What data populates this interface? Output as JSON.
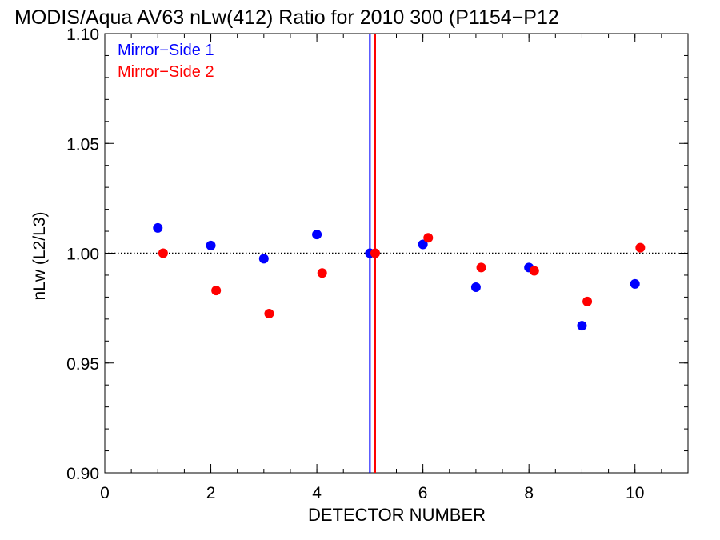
{
  "chart_data": {
    "type": "scatter",
    "title": "MODIS/Aqua AV63 nLw(412) Ratio for 2010 300 (P1154−P12",
    "xlabel": "DETECTOR NUMBER",
    "ylabel": "nLw (L2/L3)",
    "xlim": [
      0,
      11
    ],
    "ylim": [
      0.9,
      1.1
    ],
    "x_ticks": [
      0,
      2,
      4,
      6,
      8,
      10
    ],
    "x_tick_labels": [
      "0",
      "2",
      "4",
      "6",
      "8",
      "10"
    ],
    "y_ticks": [
      0.9,
      0.95,
      1.0,
      1.05,
      1.1
    ],
    "y_tick_labels": [
      "0.90",
      "0.95",
      "1.00",
      "1.05",
      "1.10"
    ],
    "reference_line_y": 1.0,
    "vertical_lines": [
      {
        "x": 5.0,
        "color": "#0000ff"
      },
      {
        "x": 5.1,
        "color": "#ff0000"
      }
    ],
    "legend_position": "top-left",
    "series": [
      {
        "name": "Mirror−Side 1",
        "color": "#0000ff",
        "x": [
          1,
          2,
          3,
          4,
          5,
          6,
          7,
          8,
          9,
          10
        ],
        "y": [
          1.0115,
          1.0035,
          0.9975,
          1.0085,
          1.0,
          1.004,
          0.9845,
          0.9935,
          0.967,
          0.986
        ]
      },
      {
        "name": "Mirror−Side 2",
        "color": "#ff0000",
        "x": [
          1.1,
          2.1,
          3.1,
          4.1,
          5.1,
          6.1,
          7.1,
          8.1,
          9.1,
          10.1
        ],
        "y": [
          1.0,
          0.983,
          0.9725,
          0.991,
          1.0,
          1.007,
          0.9935,
          0.992,
          0.978,
          1.0025
        ]
      }
    ]
  }
}
